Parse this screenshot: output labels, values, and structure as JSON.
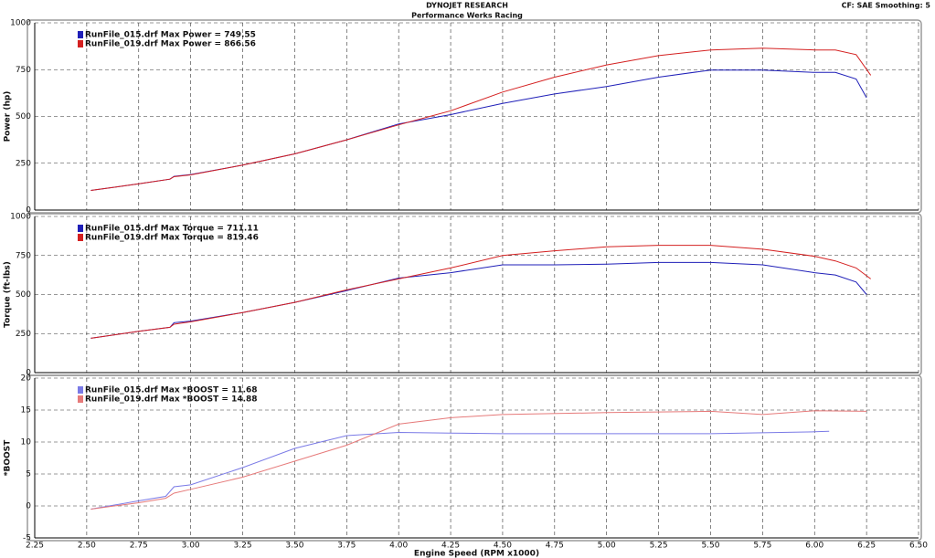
{
  "header": {
    "title": "DYNOJET RESEARCH",
    "subtitle": "Performance Werks Racing",
    "settings": "CF: SAE  Smoothing: 5"
  },
  "chart_data": [
    {
      "type": "line",
      "ylabel": "Power (hp)",
      "ylim": [
        0,
        1000
      ],
      "yticks": [
        0,
        250,
        500,
        750,
        1000
      ],
      "grid": true,
      "series": [
        {
          "name": "RunFile_015.drf Max Power = 749.55",
          "color": "#1f1fb8",
          "x": [
            2.52,
            2.75,
            2.9,
            2.92,
            3.0,
            3.25,
            3.5,
            3.75,
            4.0,
            4.25,
            4.5,
            4.75,
            5.0,
            5.25,
            5.5,
            5.75,
            6.0,
            6.1,
            6.2,
            6.25
          ],
          "values": [
            105,
            140,
            165,
            180,
            190,
            240,
            300,
            375,
            460,
            510,
            570,
            620,
            660,
            710,
            748,
            748,
            735,
            735,
            700,
            600
          ]
        },
        {
          "name": "RunFile_019.drf Max Power = 866.56",
          "color": "#d42020",
          "x": [
            2.52,
            2.75,
            2.9,
            2.92,
            3.0,
            3.25,
            3.5,
            3.75,
            4.0,
            4.25,
            4.5,
            4.75,
            5.0,
            5.25,
            5.5,
            5.75,
            6.0,
            6.1,
            6.2,
            6.27
          ],
          "values": [
            105,
            140,
            165,
            178,
            188,
            240,
            300,
            375,
            455,
            530,
            630,
            710,
            775,
            825,
            855,
            865,
            855,
            855,
            830,
            720
          ]
        }
      ]
    },
    {
      "type": "line",
      "ylabel": "Torque (ft-lbs)",
      "ylim": [
        0,
        1000
      ],
      "yticks": [
        0,
        250,
        500,
        750,
        1000
      ],
      "grid": true,
      "series": [
        {
          "name": "RunFile_015.drf Max Torque = 711.11",
          "color": "#1f1fb8",
          "x": [
            2.52,
            2.75,
            2.9,
            2.92,
            3.0,
            3.25,
            3.5,
            3.75,
            4.0,
            4.25,
            4.5,
            4.75,
            5.0,
            5.25,
            5.5,
            5.75,
            6.0,
            6.1,
            6.2,
            6.25
          ],
          "values": [
            220,
            265,
            290,
            320,
            330,
            385,
            450,
            525,
            605,
            640,
            690,
            690,
            695,
            705,
            705,
            690,
            640,
            625,
            580,
            500
          ]
        },
        {
          "name": "RunFile_019.drf Max Torque = 819.46",
          "color": "#d42020",
          "x": [
            2.52,
            2.75,
            2.9,
            2.92,
            3.0,
            3.25,
            3.5,
            3.75,
            4.0,
            4.25,
            4.5,
            4.75,
            5.0,
            5.25,
            5.5,
            5.75,
            6.0,
            6.1,
            6.2,
            6.27
          ],
          "values": [
            220,
            265,
            290,
            310,
            325,
            385,
            450,
            530,
            600,
            670,
            750,
            780,
            805,
            815,
            815,
            790,
            745,
            715,
            670,
            600
          ]
        }
      ]
    },
    {
      "type": "line",
      "ylabel": "*BOOST",
      "xlabel": "Engine Speed (RPM x1000)",
      "ylim": [
        -5,
        20
      ],
      "yticks": [
        -5,
        0,
        5,
        10,
        15,
        20
      ],
      "grid": true,
      "xlim": [
        2.25,
        6.5
      ],
      "xticks": [
        2.25,
        {
          "value": 2.5,
          "label": "2.50"
        },
        2.75,
        {
          "value": 3,
          "label": "3.00"
        },
        3.25,
        {
          "value": 3.5,
          "label": "3.50"
        },
        3.75,
        {
          "value": 4,
          "label": "4.00"
        },
        4.25,
        {
          "value": 4.5,
          "label": "4.50"
        },
        4.75,
        {
          "value": 5,
          "label": "5.00"
        },
        5.25,
        {
          "value": 5.5,
          "label": "5.50"
        },
        5.75,
        {
          "value": 6,
          "label": "6.00"
        },
        6.25,
        {
          "value": 6.5,
          "label": "6.50"
        }
      ],
      "series": [
        {
          "name": "RunFile_015.drf Max *BOOST = 11.68",
          "color": "#7a7ae6",
          "x": [
            2.52,
            2.75,
            2.88,
            2.92,
            3.0,
            3.25,
            3.5,
            3.75,
            4.0,
            4.25,
            4.5,
            5.0,
            5.5,
            6.0,
            6.07
          ],
          "values": [
            -0.5,
            0.8,
            1.5,
            3,
            3.3,
            6,
            9,
            11,
            11.5,
            11.4,
            11.3,
            11.3,
            11.3,
            11.6,
            11.68
          ]
        },
        {
          "name": "RunFile_019.drf Max *BOOST = 14.88",
          "color": "#e67a7a",
          "x": [
            2.52,
            2.75,
            2.88,
            2.92,
            3.0,
            3.25,
            3.5,
            3.75,
            4.0,
            4.25,
            4.5,
            5.0,
            5.5,
            5.75,
            6.0,
            6.25
          ],
          "values": [
            -0.5,
            0.5,
            1.2,
            2,
            2.6,
            4.5,
            7,
            9.5,
            12.8,
            13.8,
            14.3,
            14.6,
            14.8,
            14.3,
            14.88,
            14.8
          ]
        }
      ]
    }
  ]
}
